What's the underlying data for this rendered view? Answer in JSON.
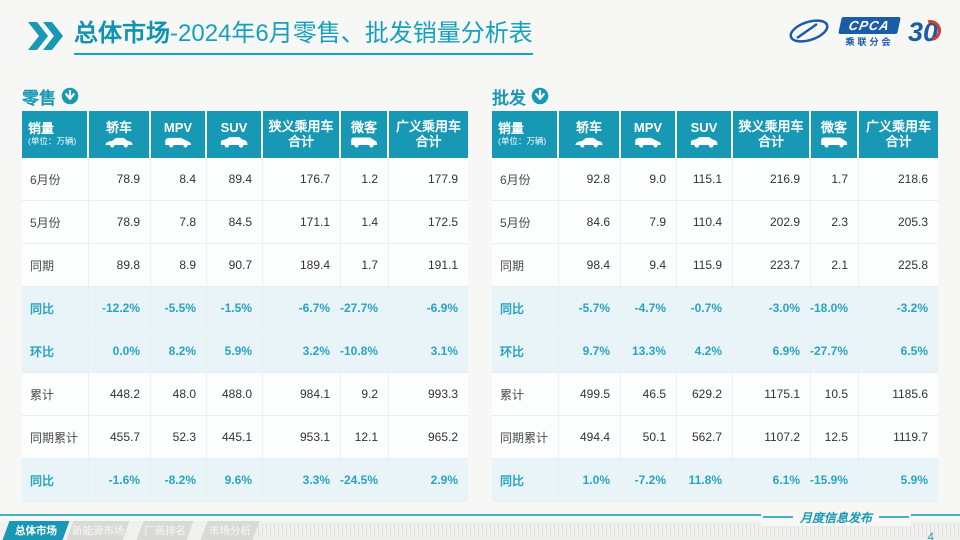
{
  "page": {
    "title_bold": "总体市场",
    "title_rest": "-2024年6月零售、批发销量分析表",
    "footer_label": "月度信息发布",
    "page_number": "4"
  },
  "logo": {
    "name": "CPCA",
    "sub": "乘联分会",
    "anniversary": "30"
  },
  "colors": {
    "accent_teal": "#1798B4",
    "title_teal": "#14A0BE",
    "highlight_row_bg": "#E8F4F8",
    "percent_text": "#2AA4BE",
    "logo_blue": "#1A5CA8",
    "logo_red": "#D93A2B"
  },
  "columns": [
    {
      "label": "销量",
      "note": "(单位：万辆)"
    },
    {
      "label": "轿车",
      "icon": "sedan-icon"
    },
    {
      "label": "MPV",
      "icon": "mpv-icon"
    },
    {
      "label": "SUV",
      "icon": "suv-icon"
    },
    {
      "label": "狭义乘用车\n合计"
    },
    {
      "label": "微客",
      "icon": "microvan-icon"
    },
    {
      "label": "广义乘用车\n合计"
    }
  ],
  "tables": [
    {
      "label": "零售",
      "rows": [
        {
          "label": "6月份",
          "type": "value",
          "values": [
            "78.9",
            "8.4",
            "89.4",
            "176.7",
            "1.2",
            "177.9"
          ]
        },
        {
          "label": "5月份",
          "type": "value",
          "values": [
            "78.9",
            "7.8",
            "84.5",
            "171.1",
            "1.4",
            "172.5"
          ]
        },
        {
          "label": "同期",
          "type": "value",
          "values": [
            "89.8",
            "8.9",
            "90.7",
            "189.4",
            "1.7",
            "191.1"
          ]
        },
        {
          "label": "同比",
          "type": "percent",
          "values": [
            "-12.2%",
            "-5.5%",
            "-1.5%",
            "-6.7%",
            "-27.7%",
            "-6.9%"
          ]
        },
        {
          "label": "环比",
          "type": "percent",
          "values": [
            "0.0%",
            "8.2%",
            "5.9%",
            "3.2%",
            "-10.8%",
            "3.1%"
          ]
        },
        {
          "label": "累计",
          "type": "value",
          "values": [
            "448.2",
            "48.0",
            "488.0",
            "984.1",
            "9.2",
            "993.3"
          ]
        },
        {
          "label": "同期累计",
          "type": "value",
          "values": [
            "455.7",
            "52.3",
            "445.1",
            "953.1",
            "12.1",
            "965.2"
          ]
        },
        {
          "label": "同比",
          "type": "percent",
          "values": [
            "-1.6%",
            "-8.2%",
            "9.6%",
            "3.3%",
            "-24.5%",
            "2.9%"
          ]
        }
      ]
    },
    {
      "label": "批发",
      "rows": [
        {
          "label": "6月份",
          "type": "value",
          "values": [
            "92.8",
            "9.0",
            "115.1",
            "216.9",
            "1.7",
            "218.6"
          ]
        },
        {
          "label": "5月份",
          "type": "value",
          "values": [
            "84.6",
            "7.9",
            "110.4",
            "202.9",
            "2.3",
            "205.3"
          ]
        },
        {
          "label": "同期",
          "type": "value",
          "values": [
            "98.4",
            "9.4",
            "115.9",
            "223.7",
            "2.1",
            "225.8"
          ]
        },
        {
          "label": "同比",
          "type": "percent",
          "values": [
            "-5.7%",
            "-4.7%",
            "-0.7%",
            "-3.0%",
            "-18.0%",
            "-3.2%"
          ]
        },
        {
          "label": "环比",
          "type": "percent",
          "values": [
            "9.7%",
            "13.3%",
            "4.2%",
            "6.9%",
            "-27.7%",
            "6.5%"
          ]
        },
        {
          "label": "累计",
          "type": "value",
          "values": [
            "499.5",
            "46.5",
            "629.2",
            "1175.1",
            "10.5",
            "1185.6"
          ]
        },
        {
          "label": "同期累计",
          "type": "value",
          "values": [
            "494.4",
            "50.1",
            "562.7",
            "1107.2",
            "12.5",
            "1119.7"
          ]
        },
        {
          "label": "同比",
          "type": "percent",
          "values": [
            "1.0%",
            "-7.2%",
            "11.8%",
            "6.1%",
            "-15.9%",
            "5.9%"
          ]
        }
      ]
    }
  ],
  "bottom_nav": {
    "tabs": [
      {
        "label": "总体市场",
        "active": true
      },
      {
        "label": "新能源市场",
        "active": false
      },
      {
        "label": "厂商排名",
        "active": false
      },
      {
        "label": "市场分析",
        "active": false
      }
    ]
  }
}
